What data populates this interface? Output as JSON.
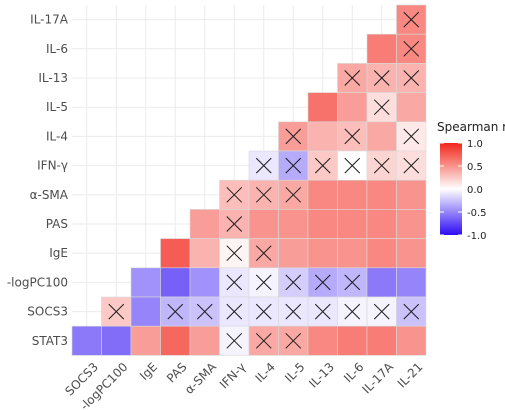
{
  "chart_data": {
    "type": "heatmap",
    "subtype": "lower-triangular correlation matrix",
    "variables": [
      "SOCS3",
      "-logPC100",
      "IgE",
      "PAS",
      "α-SMA",
      "IFN-γ",
      "IL-4",
      "IL-5",
      "IL-13",
      "IL-6",
      "IL-17A",
      "IL-21"
    ],
    "row_labels_top_to_bottom": [
      "IL-17A",
      "IL-6",
      "IL-13",
      "IL-5",
      "IL-4",
      "IFN-γ",
      "α-SMA",
      "PAS",
      "IgE",
      "-logPC100",
      "SOCS3",
      "STAT3"
    ],
    "col_labels_left_to_right": [
      "SOCS3",
      "-logPC100",
      "IgE",
      "PAS",
      "α-SMA",
      "IFN-γ",
      "IL-4",
      "IL-5",
      "IL-13",
      "IL-6",
      "IL-17A",
      "IL-21"
    ],
    "cells": [
      {
        "row": "IL-17A",
        "values": [
          0.55
        ],
        "nonsig": [
          true
        ]
      },
      {
        "row": "IL-6",
        "values": [
          0.6,
          0.55
        ],
        "nonsig": [
          false,
          true
        ]
      },
      {
        "row": "IL-13",
        "values": [
          0.4,
          0.35,
          0.35
        ],
        "nonsig": [
          true,
          true,
          true
        ]
      },
      {
        "row": "IL-5",
        "values": [
          0.65,
          0.45,
          0.15,
          0.4
        ],
        "nonsig": [
          false,
          false,
          true,
          false
        ]
      },
      {
        "row": "IL-4",
        "values": [
          0.45,
          0.35,
          0.3,
          0.4,
          0.1
        ],
        "nonsig": [
          true,
          false,
          true,
          false,
          true
        ]
      },
      {
        "row": "IFN-γ",
        "values": [
          -0.1,
          -0.35,
          0.25,
          0.0,
          0.2,
          0.15
        ],
        "nonsig": [
          true,
          true,
          true,
          true,
          true,
          true
        ]
      },
      {
        "row": "α-SMA",
        "values": [
          0.3,
          0.35,
          0.4,
          0.55,
          0.55,
          0.55,
          0.5
        ],
        "nonsig": [
          true,
          true,
          true,
          false,
          false,
          false,
          false
        ]
      },
      {
        "row": "PAS",
        "values": [
          0.45,
          0.35,
          0.5,
          0.5,
          0.55,
          0.55,
          0.55,
          0.5
        ],
        "nonsig": [
          false,
          true,
          false,
          false,
          false,
          false,
          false,
          false
        ]
      },
      {
        "row": "IgE",
        "values": [
          0.75,
          0.35,
          0.05,
          0.4,
          0.45,
          0.5,
          0.5,
          0.55,
          0.5
        ],
        "nonsig": [
          false,
          false,
          true,
          true,
          false,
          false,
          false,
          false,
          false
        ]
      },
      {
        "row": "-logPC100",
        "values": [
          -0.45,
          -0.65,
          -0.45,
          -0.1,
          -0.05,
          -0.2,
          -0.35,
          -0.3,
          -0.55,
          -0.5
        ],
        "nonsig": [
          false,
          false,
          false,
          true,
          true,
          true,
          true,
          true,
          false,
          false
        ]
      },
      {
        "row": "SOCS3",
        "values": [
          0.25,
          -0.5,
          -0.3,
          -0.25,
          -0.1,
          -0.1,
          -0.1,
          -0.1,
          -0.05,
          -0.05,
          -0.25
        ],
        "nonsig": [
          true,
          false,
          true,
          true,
          true,
          true,
          true,
          true,
          true,
          true,
          true
        ]
      },
      {
        "row": "STAT3",
        "values": [
          -0.55,
          -0.6,
          0.45,
          0.7,
          0.45,
          -0.05,
          0.4,
          0.4,
          0.55,
          0.6,
          0.6,
          0.5
        ],
        "nonsig": [
          false,
          false,
          false,
          false,
          false,
          true,
          true,
          true,
          false,
          false,
          false,
          false
        ]
      }
    ],
    "color_scale": {
      "low": "#2d0bf4",
      "mid": "#ffffff",
      "high": "#f2261a",
      "min": -1.0,
      "max": 1.0
    },
    "legend": {
      "title": "Spearman r",
      "ticks": [
        "1.0",
        "0.5",
        "0.0",
        "-0.5",
        "-1.0"
      ],
      "tick_values": [
        1.0,
        0.5,
        0.0,
        -0.5,
        -1.0
      ],
      "position": "right"
    },
    "grid": true,
    "nonsignificant_marker": "×"
  }
}
